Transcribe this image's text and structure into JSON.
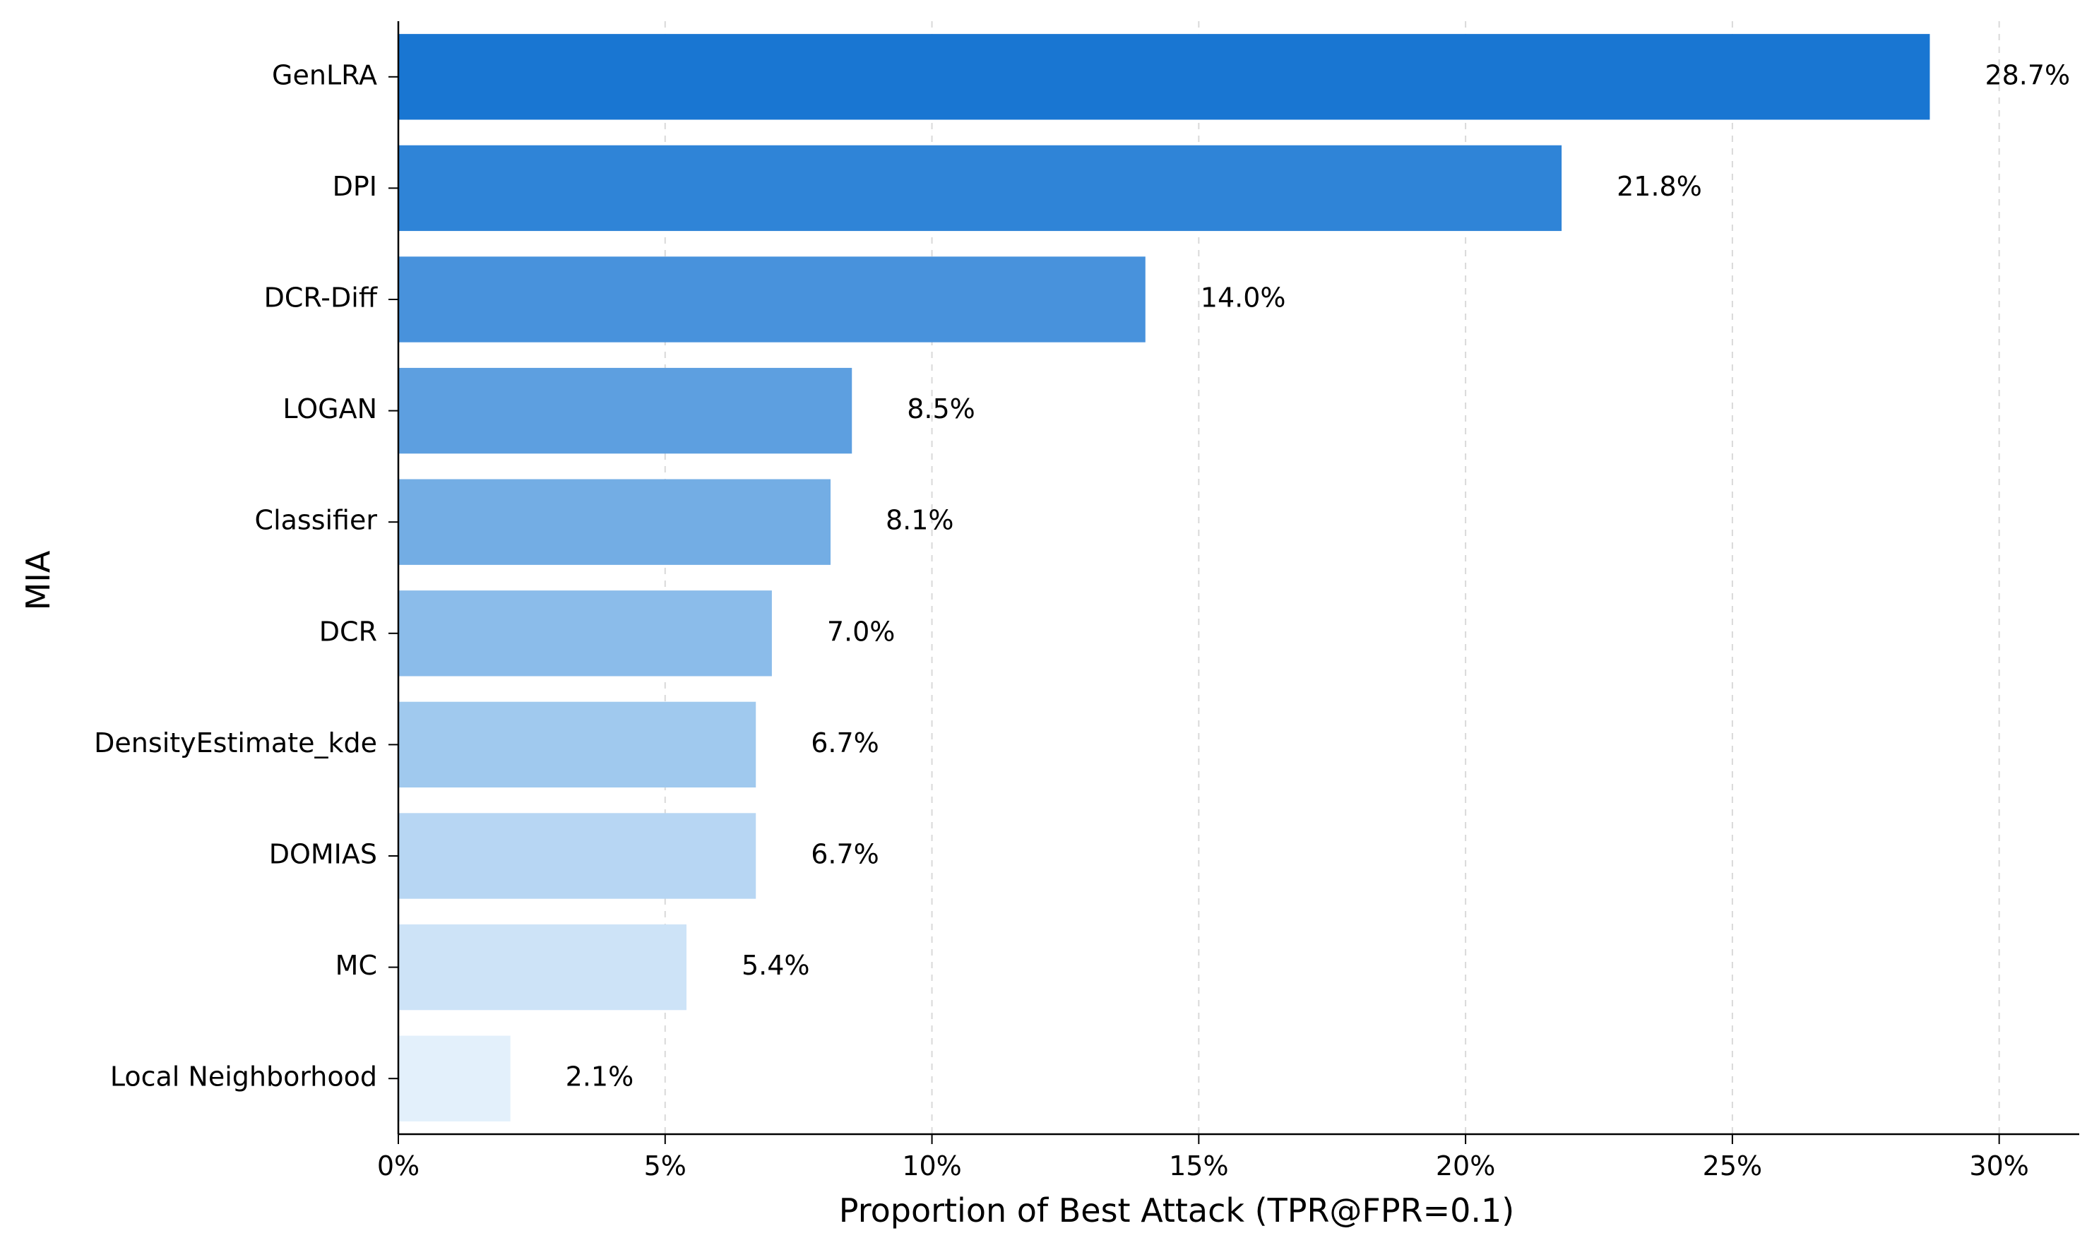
{
  "chart_data": {
    "type": "bar",
    "orientation": "horizontal",
    "title": "",
    "xlabel": "Proportion of Best Attack (TPR@FPR=0.1)",
    "ylabel": "MIA",
    "xlim": [
      0,
      31.5
    ],
    "x_ticks": [
      0,
      5,
      10,
      15,
      20,
      25,
      30
    ],
    "x_tick_labels": [
      "0%",
      "5%",
      "10%",
      "15%",
      "20%",
      "25%",
      "30%"
    ],
    "grid": "x, dashed",
    "categories": [
      "GenLRA",
      "DPI",
      "DCR-Diff",
      "LOGAN",
      "Classifier",
      "DCR",
      "DensityEstimate_kde",
      "DOMIAS",
      "MC",
      "Local Neighborhood"
    ],
    "values": [
      28.7,
      21.8,
      14.0,
      8.5,
      8.1,
      7.0,
      6.7,
      6.7,
      5.4,
      2.1
    ],
    "value_labels": [
      "28.7%",
      "21.8%",
      "14.0%",
      "8.5%",
      "8.1%",
      "7.0%",
      "6.7%",
      "6.7%",
      "5.4%",
      "2.1%"
    ],
    "colors": [
      "#1976d2",
      "#2f84d7",
      "#4892dc",
      "#5d9fe0",
      "#73ade4",
      "#8bbcea",
      "#a0c9ee",
      "#b7d6f3",
      "#cde3f7",
      "#e3f0fb"
    ]
  }
}
